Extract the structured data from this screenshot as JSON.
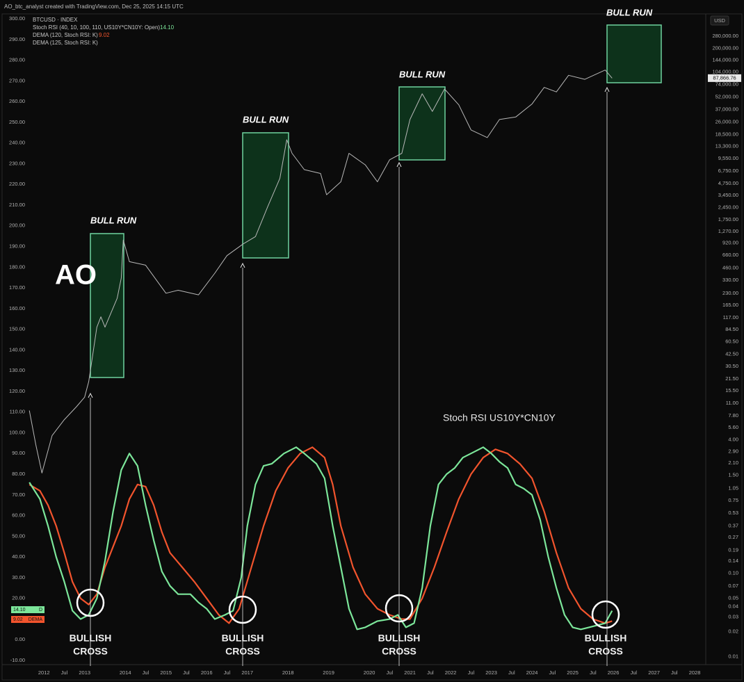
{
  "chart_data": {
    "type": "line",
    "header": "AO_btc_analyst created with TradingView.com, Dec 25, 2025 14:15 UTC",
    "currency": "USD",
    "extra_study": "DEMA (125, Stoch RSI: K)",
    "annotations": {
      "bull_run": [
        "BULL RUN",
        "BULL RUN",
        "BULL RUN",
        "BULL RUN"
      ],
      "logo": "AO",
      "indicator_title": "Stoch RSI US10Y*CN10Y",
      "crosses": [
        [
          "BULLISH",
          "CROSS"
        ],
        [
          "BULLISH",
          "CROSS"
        ],
        [
          "BULLISH",
          "CROSS"
        ],
        [
          "BULLISH",
          "CROSS"
        ]
      ]
    },
    "xlim": [
      2011.62,
      2028.17
    ],
    "xticks": [
      2012,
      {
        "value": 2012.5,
        "label": "Jul"
      },
      2013,
      2014,
      {
        "value": 2014.5,
        "label": "Jul"
      },
      2015,
      {
        "value": 2015.5,
        "label": "Jul"
      },
      2016,
      {
        "value": 2016.5,
        "label": "Jul"
      },
      2017,
      2018,
      2019,
      2020,
      {
        "value": 2020.5,
        "label": "Jul"
      },
      2021,
      {
        "value": 2021.5,
        "label": "Jul"
      },
      2022,
      {
        "value": 2022.5,
        "label": "Jul"
      },
      2023,
      {
        "value": 2023.5,
        "label": "Jul"
      },
      2024,
      {
        "value": 2024.5,
        "label": "Jul"
      },
      2025,
      {
        "value": 2025.5,
        "label": "Jul"
      },
      2026,
      {
        "value": 2026.5,
        "label": "Jul"
      },
      2027,
      {
        "value": 2027.5,
        "label": "Jul"
      },
      2028
    ],
    "ylim": [
      -10,
      300
    ],
    "yticks": [
      {
        "value": 300,
        "label": "300.00"
      },
      {
        "value": 290,
        "label": "290.00"
      },
      {
        "value": 280,
        "label": "280.00"
      },
      {
        "value": 270,
        "label": "270.00"
      },
      {
        "value": 260,
        "label": "260.00"
      },
      {
        "value": 250,
        "label": "250.00"
      },
      {
        "value": 240,
        "label": "240.00"
      },
      {
        "value": 230,
        "label": "230.00"
      },
      {
        "value": 220,
        "label": "220.00"
      },
      {
        "value": 210,
        "label": "210.00"
      },
      {
        "value": 200,
        "label": "200.00"
      },
      {
        "value": 190,
        "label": "190.00"
      },
      {
        "value": 180,
        "label": "180.00"
      },
      {
        "value": 170,
        "label": "170.00"
      },
      {
        "value": 160,
        "label": "160.00"
      },
      {
        "value": 150,
        "label": "150.00"
      },
      {
        "value": 140,
        "label": "140.00"
      },
      {
        "value": 130,
        "label": "130.00"
      },
      {
        "value": 120,
        "label": "120.00"
      },
      {
        "value": 110,
        "label": "110.00"
      },
      {
        "value": 100,
        "label": "100.00"
      },
      {
        "value": 90,
        "label": "90.00"
      },
      {
        "value": 80,
        "label": "80.00"
      },
      {
        "value": 70,
        "label": "70.00"
      },
      {
        "value": 60,
        "label": "60.00"
      },
      {
        "value": 50,
        "label": "50.00"
      },
      {
        "value": 40,
        "label": "40.00"
      },
      {
        "value": 30,
        "label": "30.00"
      },
      {
        "value": 20,
        "label": "20.00"
      },
      {
        "value": 10,
        "label": "10.00"
      },
      {
        "value": 0,
        "label": "0.00"
      },
      {
        "value": -10,
        "label": "-10.00"
      }
    ],
    "y2_log": true,
    "y2lim": [
      0.009,
      453000
    ],
    "y2ticks": [
      {
        "value": 280000,
        "label": "280,000.00"
      },
      {
        "value": 200000,
        "label": "200,000.00"
      },
      {
        "value": 144000,
        "label": "144,000.00"
      },
      {
        "value": 104000,
        "label": "104,000.00"
      },
      {
        "value": 74000,
        "label": "74,000.00"
      },
      {
        "value": 52000,
        "label": "52,000.00"
      },
      {
        "value": 37000,
        "label": "37,000.00"
      },
      {
        "value": 26000,
        "label": "26,000.00"
      },
      {
        "value": 18500,
        "label": "18,500.00"
      },
      {
        "value": 13300,
        "label": "13,300.00"
      },
      {
        "value": 9550,
        "label": "9,550.00"
      },
      {
        "value": 6750,
        "label": "6,750.00"
      },
      {
        "value": 4750,
        "label": "4,750.00"
      },
      {
        "value": 3450,
        "label": "3,450.00"
      },
      {
        "value": 2450,
        "label": "2,450.00"
      },
      {
        "value": 1750,
        "label": "1,750.00"
      },
      {
        "value": 1270,
        "label": "1,270.00"
      },
      {
        "value": 920,
        "label": "920.00"
      },
      {
        "value": 660,
        "label": "660.00"
      },
      {
        "value": 460,
        "label": "460.00"
      },
      {
        "value": 330,
        "label": "330.00"
      },
      {
        "value": 230,
        "label": "230.00"
      },
      {
        "value": 165,
        "label": "165.00"
      },
      {
        "value": 117,
        "label": "117.00"
      },
      {
        "value": 84.5,
        "label": "84.50"
      },
      {
        "value": 60.5,
        "label": "60.50"
      },
      {
        "value": 42.5,
        "label": "42.50"
      },
      {
        "value": 30.5,
        "label": "30.50"
      },
      {
        "value": 21.5,
        "label": "21.50"
      },
      {
        "value": 15.5,
        "label": "15.50"
      },
      {
        "value": 11,
        "label": "11.00"
      },
      {
        "value": 7.8,
        "label": "7.80"
      },
      {
        "value": 5.6,
        "label": "5.60"
      },
      {
        "value": 4,
        "label": "4.00"
      },
      {
        "value": 2.9,
        "label": "2.90"
      },
      {
        "value": 2.1,
        "label": "2.10"
      },
      {
        "value": 1.5,
        "label": "1.50"
      },
      {
        "value": 1.05,
        "label": "1.05"
      },
      {
        "value": 0.75,
        "label": "0.75"
      },
      {
        "value": 0.53,
        "label": "0.53"
      },
      {
        "value": 0.37,
        "label": "0.37"
      },
      {
        "value": 0.27,
        "label": "0.27"
      },
      {
        "value": 0.19,
        "label": "0.19"
      },
      {
        "value": 0.14,
        "label": "0.14"
      },
      {
        "value": 0.1,
        "label": "0.10"
      },
      {
        "value": 0.07,
        "label": "0.07"
      },
      {
        "value": 0.05,
        "label": "0.05"
      },
      {
        "value": 0.04,
        "label": "0.04"
      },
      {
        "value": 0.03,
        "label": "0.03"
      },
      {
        "value": 0.02,
        "label": "0.02"
      },
      {
        "value": 0.01,
        "label": "0.01"
      }
    ],
    "grid": false,
    "series": [
      {
        "name": "Stoch RSI (40, 10, 100, 110, US10Y*CN10Y: Open)",
        "color": "#7ce69a",
        "tag": "D",
        "last_value": {
          "value": 14.1,
          "label": "14.10"
        },
        "x": [
          2011.64,
          2011.9,
          2012.1,
          2012.3,
          2012.5,
          2012.7,
          2012.9,
          2013.1,
          2013.3,
          2013.5,
          2013.7,
          2013.9,
          2014.1,
          2014.3,
          2014.5,
          2014.7,
          2014.9,
          2015.1,
          2015.3,
          2015.6,
          2015.8,
          2016.0,
          2016.2,
          2016.45,
          2016.65,
          2016.85,
          2017.0,
          2017.2,
          2017.4,
          2017.6,
          2017.9,
          2018.2,
          2018.4,
          2018.7,
          2018.9,
          2019.1,
          2019.3,
          2019.5,
          2019.7,
          2019.9,
          2020.2,
          2020.5,
          2020.7,
          2020.9,
          2021.1,
          2021.3,
          2021.5,
          2021.7,
          2021.9,
          2022.1,
          2022.3,
          2022.6,
          2022.8,
          2023.0,
          2023.2,
          2023.4,
          2023.6,
          2023.8,
          2024.0,
          2024.2,
          2024.4,
          2024.6,
          2024.8,
          2025.0,
          2025.2,
          2025.4,
          2025.6,
          2025.8,
          2025.97
        ],
        "values": [
          76,
          68,
          55,
          40,
          28,
          14,
          10,
          12,
          20,
          38,
          62,
          82,
          90,
          84,
          65,
          48,
          33,
          26,
          22,
          22,
          18,
          15,
          10,
          12,
          14,
          30,
          55,
          75,
          84,
          85,
          90,
          93,
          90,
          85,
          78,
          55,
          35,
          15,
          5,
          6,
          9,
          10,
          12,
          6,
          8,
          25,
          55,
          75,
          80,
          83,
          88,
          91,
          93,
          90,
          86,
          83,
          75,
          73,
          70,
          58,
          40,
          25,
          12,
          6,
          5,
          6,
          7,
          8,
          14
        ]
      },
      {
        "name": "DEMA (120, Stoch RSI: K)",
        "color": "#f2542d",
        "tag": "DEMA",
        "last_value": {
          "value": 9.02,
          "label": "9.02"
        },
        "x": [
          2011.64,
          2011.9,
          2012.1,
          2012.3,
          2012.5,
          2012.7,
          2012.9,
          2013.1,
          2013.3,
          2013.5,
          2013.7,
          2013.9,
          2014.1,
          2014.3,
          2014.5,
          2014.7,
          2014.9,
          2015.1,
          2015.4,
          2015.7,
          2016.0,
          2016.3,
          2016.55,
          2016.8,
          2017.1,
          2017.4,
          2017.7,
          2018.0,
          2018.3,
          2018.6,
          2018.9,
          2019.1,
          2019.3,
          2019.6,
          2019.9,
          2020.2,
          2020.5,
          2020.8,
          2021.0,
          2021.3,
          2021.6,
          2021.9,
          2022.2,
          2022.5,
          2022.8,
          2023.1,
          2023.4,
          2023.7,
          2024.0,
          2024.3,
          2024.6,
          2024.9,
          2025.2,
          2025.5,
          2025.8,
          2025.97
        ],
        "values": [
          75,
          72,
          65,
          55,
          42,
          28,
          20,
          17,
          22,
          35,
          45,
          55,
          68,
          75,
          74,
          65,
          52,
          42,
          35,
          28,
          20,
          12,
          8,
          15,
          35,
          55,
          72,
          83,
          90,
          93,
          88,
          75,
          55,
          35,
          22,
          15,
          12,
          10,
          10,
          20,
          35,
          52,
          68,
          80,
          88,
          92,
          90,
          85,
          78,
          62,
          42,
          25,
          15,
          10,
          8,
          9
        ]
      },
      {
        "name": "BTCUSD · INDEX",
        "color": "#b8b8b8",
        "axis": "y2",
        "last_value": {
          "value": 87866.76,
          "label": "87,866.76"
        },
        "x": [
          2011.64,
          2011.8,
          2011.95,
          2012.2,
          2012.5,
          2012.8,
          2013.0,
          2013.1,
          2013.3,
          2013.4,
          2013.5,
          2013.8,
          2013.9,
          2013.95,
          2014.1,
          2014.5,
          2015.0,
          2015.3,
          2015.8,
          2016.2,
          2016.5,
          2016.9,
          2017.2,
          2017.5,
          2017.8,
          2017.97,
          2018.1,
          2018.4,
          2018.8,
          2018.95,
          2019.3,
          2019.5,
          2019.9,
          2020.2,
          2020.5,
          2020.8,
          2021.0,
          2021.3,
          2021.55,
          2021.85,
          2022.2,
          2022.5,
          2022.9,
          2023.2,
          2023.6,
          2024.0,
          2024.3,
          2024.6,
          2024.9,
          2025.3,
          2025.8,
          2025.97
        ],
        "values": [
          9,
          3.5,
          1.6,
          4.5,
          7,
          10,
          13,
          20,
          90,
          120,
          90,
          200,
          350,
          1000,
          550,
          500,
          230,
          250,
          220,
          400,
          650,
          900,
          1100,
          2500,
          5500,
          16000,
          11000,
          7000,
          6300,
          3500,
          5000,
          11000,
          8000,
          5000,
          9200,
          11000,
          28000,
          57000,
          35000,
          65000,
          42000,
          21000,
          17000,
          28000,
          30000,
          43000,
          68000,
          60000,
          95000,
          85000,
          110000,
          87866.76
        ]
      }
    ]
  }
}
